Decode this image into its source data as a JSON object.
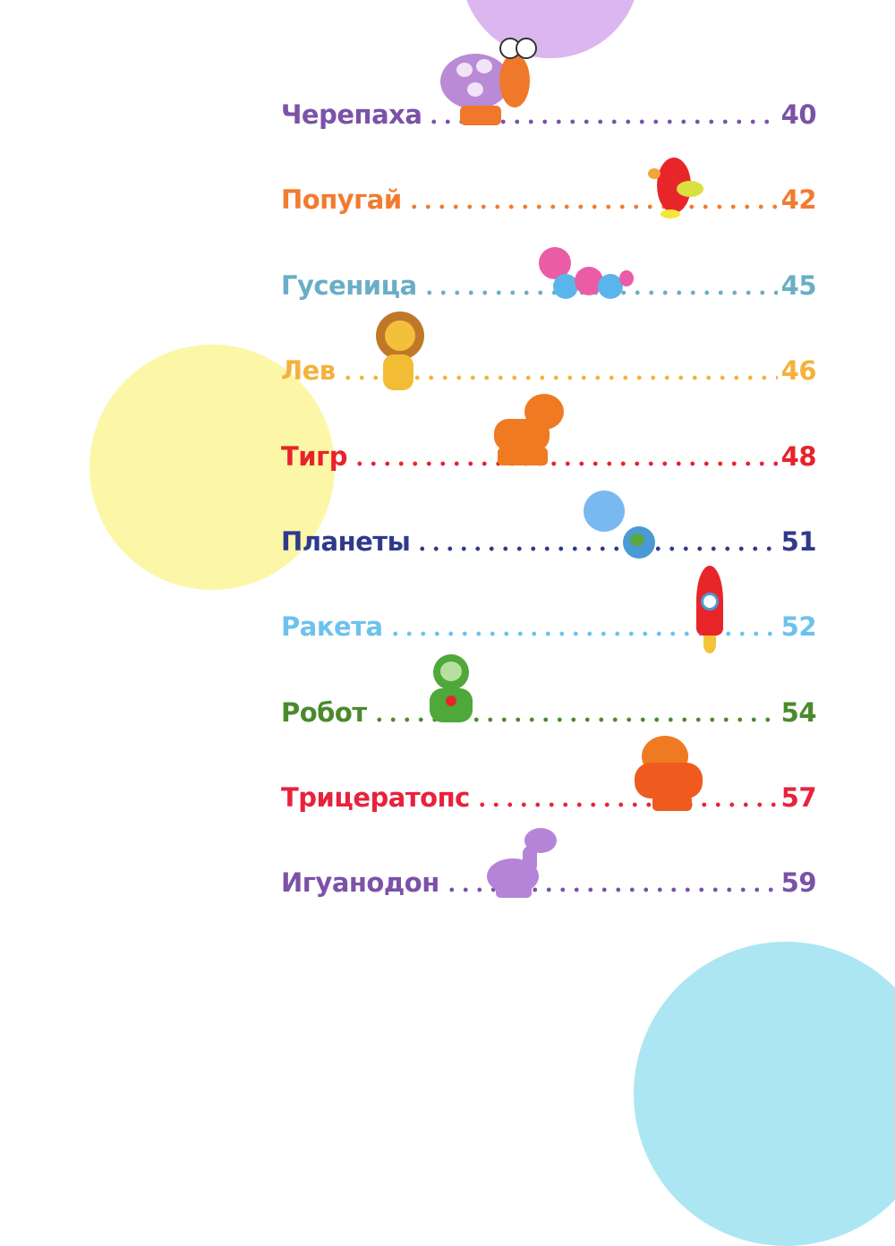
{
  "colors": {
    "circle_purple": "#dcb6ee",
    "circle_yellow": "#fbf7a6",
    "circle_cyan": "#ace6f2"
  },
  "toc": [
    {
      "title": "Черепаха",
      "page": "40",
      "color": "#7b52a8",
      "icon": "turtle"
    },
    {
      "title": "Попугай",
      "page": "42",
      "color": "#f27b30",
      "icon": "parrot"
    },
    {
      "title": "Гусеница",
      "page": "45",
      "color": "#6aaec6",
      "icon": "caterpillar"
    },
    {
      "title": "Лев",
      "page": "46",
      "color": "#f4b23c",
      "icon": "lion"
    },
    {
      "title": "Тигр",
      "page": "48",
      "color": "#e8222c",
      "icon": "tiger"
    },
    {
      "title": "Планеты",
      "page": "51",
      "color": "#2f3a8c",
      "icon": "planets"
    },
    {
      "title": "Ракета",
      "page": "52",
      "color": "#6cc2ee",
      "icon": "rocket"
    },
    {
      "title": "Робот",
      "page": "54",
      "color": "#4a8a2c",
      "icon": "robot"
    },
    {
      "title": "Трицератопс",
      "page": "57",
      "color": "#e8223c",
      "icon": "triceratops"
    },
    {
      "title": "Игуанодон",
      "page": "59",
      "color": "#7b52a8",
      "icon": "iguanodon"
    }
  ]
}
